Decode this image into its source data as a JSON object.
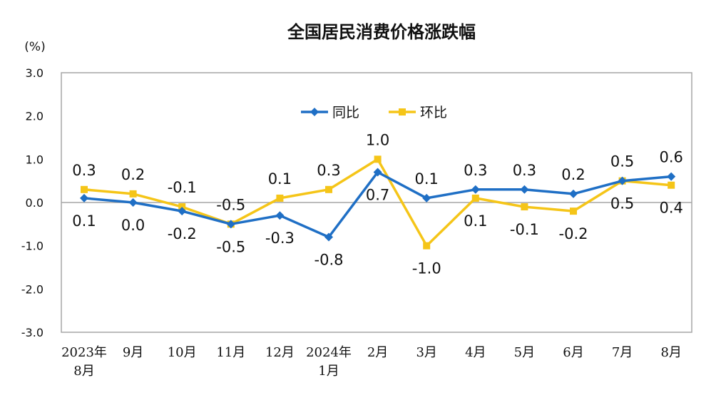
{
  "chart_data": {
    "type": "line",
    "title": "全国居民消费价格涨跌幅",
    "ylabel": "(%)",
    "xlabel": "",
    "ylim": [
      -3.0,
      3.0
    ],
    "yticks": [
      "3.0",
      "2.0",
      "1.0",
      "0.0",
      "-1.0",
      "-2.0",
      "-3.0"
    ],
    "ytick_values": [
      3,
      2,
      1,
      0,
      -1,
      -2,
      -3
    ],
    "grid": false,
    "legend_position": "top-center",
    "categories": [
      [
        "2023年",
        "8月"
      ],
      [
        "9月"
      ],
      [
        "10月"
      ],
      [
        "11月"
      ],
      [
        "12月"
      ],
      [
        "2024年",
        "1月"
      ],
      [
        "2月"
      ],
      [
        "3月"
      ],
      [
        "4月"
      ],
      [
        "5月"
      ],
      [
        "6月"
      ],
      [
        "7月"
      ],
      [
        "8月"
      ]
    ],
    "series": [
      {
        "name": "同比",
        "color": "#1f6fc5",
        "marker": "diamond",
        "values": [
          0.1,
          0.0,
          -0.2,
          -0.5,
          -0.3,
          -0.8,
          0.7,
          0.1,
          0.3,
          0.3,
          0.2,
          0.5,
          0.6
        ],
        "labels": [
          "0.1",
          "0.0",
          "-0.2",
          "-0.5",
          "-0.3",
          "-0.8",
          "0.7",
          "0.1",
          "0.3",
          "0.3",
          "0.2",
          "0.5",
          "0.6"
        ],
        "label_side": [
          "below",
          "below",
          "below",
          "below",
          "below",
          "below",
          "below",
          "above",
          "above",
          "above",
          "above",
          "above",
          "above"
        ]
      },
      {
        "name": "环比",
        "color": "#f5c518",
        "marker": "square",
        "values": [
          0.3,
          0.2,
          -0.1,
          -0.5,
          0.1,
          0.3,
          1.0,
          -1.0,
          0.1,
          -0.1,
          -0.2,
          0.5,
          0.4
        ],
        "labels": [
          "0.3",
          "0.2",
          "-0.1",
          "-0.5",
          "0.1",
          "0.3",
          "1.0",
          "-1.0",
          "0.1",
          "-0.1",
          "-0.2",
          "0.5",
          "0.4"
        ],
        "label_side": [
          "above",
          "above",
          "above",
          "above",
          "above",
          "above",
          "above",
          "below",
          "below",
          "below",
          "below",
          "below",
          "below"
        ]
      }
    ]
  }
}
